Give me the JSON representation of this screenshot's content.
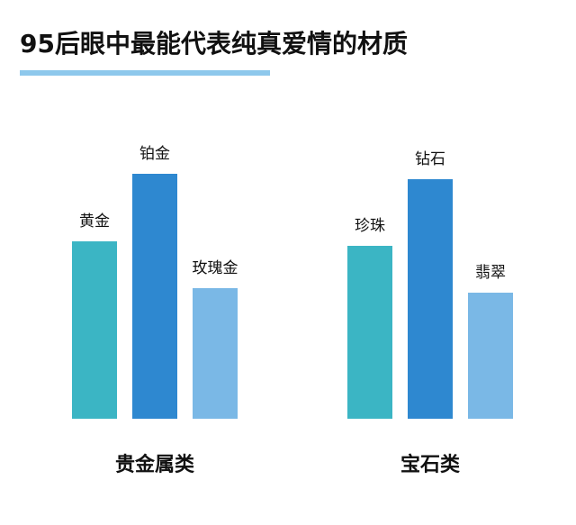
{
  "title": "95后眼中最能代表纯真爱情的材质",
  "chart_data": [
    {
      "type": "bar",
      "xlabel": "贵金属类",
      "categories": [
        "黄金",
        "铂金",
        "玫瑰金"
      ],
      "values": [
        197,
        272,
        145
      ],
      "colors": [
        "#3bb5c4",
        "#2e88d0",
        "#7ab8e6"
      ],
      "ylim": [
        0,
        300
      ]
    },
    {
      "type": "bar",
      "xlabel": "宝石类",
      "categories": [
        "珍珠",
        "钻石",
        "翡翠"
      ],
      "values": [
        192,
        266,
        140
      ],
      "colors": [
        "#3bb5c4",
        "#2e88d0",
        "#7ab8e6"
      ],
      "ylim": [
        0,
        300
      ]
    }
  ]
}
